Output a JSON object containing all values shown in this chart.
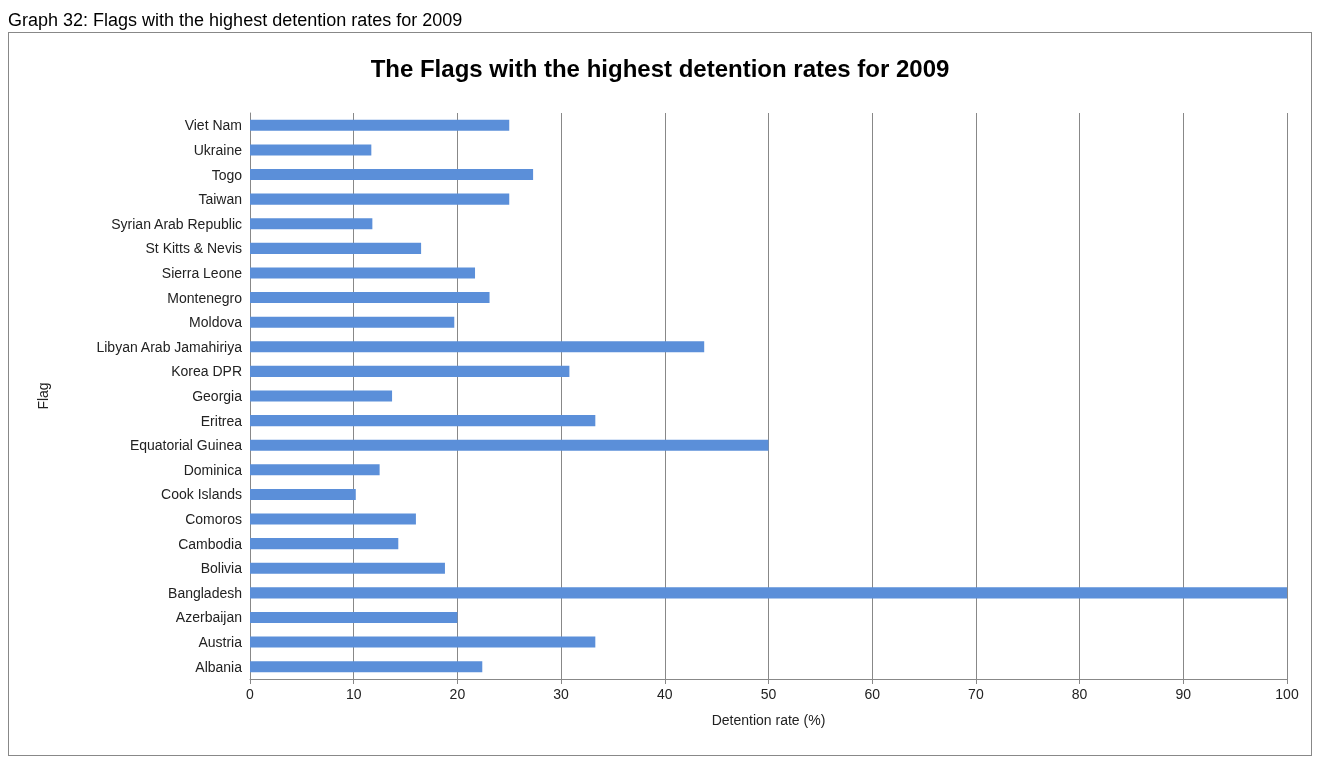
{
  "chart_data": {
    "type": "bar",
    "orientation": "horizontal",
    "title": "The Flags with the highest detention rates for 2009",
    "annotations": [
      "Graph 32: Flags with the highest detention rates for 2009"
    ],
    "xlabel": "Detention rate (%)",
    "ylabel": "Flag",
    "categories": [
      "Viet Nam",
      "Ukraine",
      "Togo",
      "Taiwan",
      "Syrian Arab Republic",
      "St Kitts & Nevis",
      "Sierra Leone",
      "Montenegro",
      "Moldova",
      "Libyan Arab Jamahiriya",
      "Korea DPR",
      "Georgia",
      "Eritrea",
      "Equatorial Guinea",
      "Dominica",
      "Cook Islands",
      "Comoros",
      "Cambodia",
      "Bolivia",
      "Bangladesh",
      "Azerbaijan",
      "Austria",
      "Albania"
    ],
    "values": [
      25,
      11.7,
      27.3,
      25,
      11.8,
      16.5,
      21.7,
      23.1,
      19.7,
      43.8,
      30.8,
      13.7,
      33.3,
      50,
      12.5,
      10.2,
      16,
      14.3,
      18.8,
      100,
      20,
      33.3,
      22.4
    ],
    "color": "#5b8fd9",
    "xlim": [
      0,
      100
    ],
    "xticks": [
      0,
      10,
      20,
      30,
      40,
      50,
      60,
      70,
      80,
      90,
      100
    ],
    "grid": "x"
  }
}
